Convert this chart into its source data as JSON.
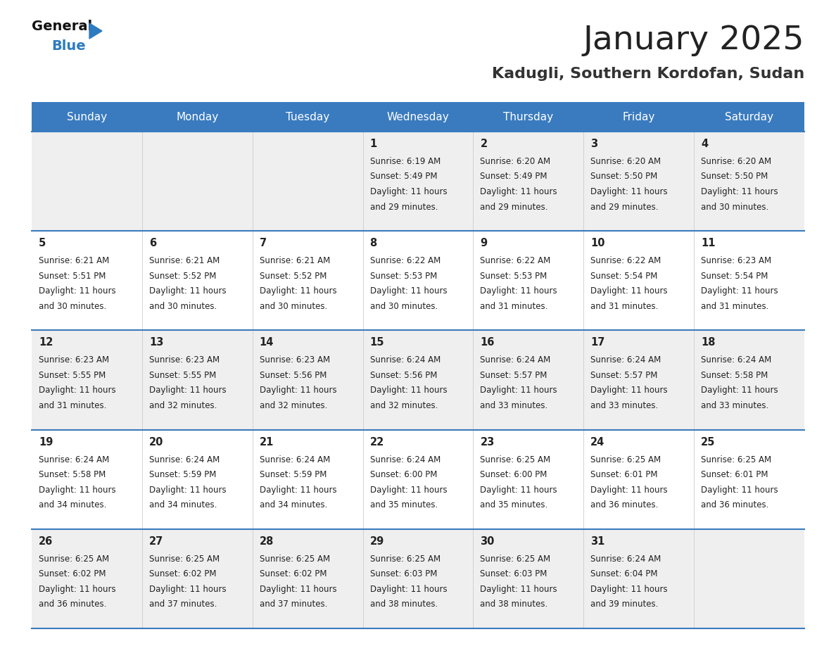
{
  "title": "January 2025",
  "subtitle": "Kadugli, Southern Kordofan, Sudan",
  "days_of_week": [
    "Sunday",
    "Monday",
    "Tuesday",
    "Wednesday",
    "Thursday",
    "Friday",
    "Saturday"
  ],
  "header_bg": "#3a7bbf",
  "header_text": "#ffffff",
  "cell_bg_odd": "#efefef",
  "cell_bg_even": "#ffffff",
  "row_line_color": "#3a7bbf",
  "text_color": "#222222",
  "title_color": "#222222",
  "subtitle_color": "#333333",
  "logo_general_color": "#1a1a1a",
  "logo_blue_color": "#2e7bbf",
  "calendar": [
    [
      null,
      null,
      null,
      {
        "day": 1,
        "sunrise": "6:19 AM",
        "sunset": "5:49 PM",
        "daylight": "11 hours",
        "minutes": "29 minutes."
      },
      {
        "day": 2,
        "sunrise": "6:20 AM",
        "sunset": "5:49 PM",
        "daylight": "11 hours",
        "minutes": "29 minutes."
      },
      {
        "day": 3,
        "sunrise": "6:20 AM",
        "sunset": "5:50 PM",
        "daylight": "11 hours",
        "minutes": "29 minutes."
      },
      {
        "day": 4,
        "sunrise": "6:20 AM",
        "sunset": "5:50 PM",
        "daylight": "11 hours",
        "minutes": "30 minutes."
      }
    ],
    [
      {
        "day": 5,
        "sunrise": "6:21 AM",
        "sunset": "5:51 PM",
        "daylight": "11 hours",
        "minutes": "30 minutes."
      },
      {
        "day": 6,
        "sunrise": "6:21 AM",
        "sunset": "5:52 PM",
        "daylight": "11 hours",
        "minutes": "30 minutes."
      },
      {
        "day": 7,
        "sunrise": "6:21 AM",
        "sunset": "5:52 PM",
        "daylight": "11 hours",
        "minutes": "30 minutes."
      },
      {
        "day": 8,
        "sunrise": "6:22 AM",
        "sunset": "5:53 PM",
        "daylight": "11 hours",
        "minutes": "30 minutes."
      },
      {
        "day": 9,
        "sunrise": "6:22 AM",
        "sunset": "5:53 PM",
        "daylight": "11 hours",
        "minutes": "31 minutes."
      },
      {
        "day": 10,
        "sunrise": "6:22 AM",
        "sunset": "5:54 PM",
        "daylight": "11 hours",
        "minutes": "31 minutes."
      },
      {
        "day": 11,
        "sunrise": "6:23 AM",
        "sunset": "5:54 PM",
        "daylight": "11 hours",
        "minutes": "31 minutes."
      }
    ],
    [
      {
        "day": 12,
        "sunrise": "6:23 AM",
        "sunset": "5:55 PM",
        "daylight": "11 hours",
        "minutes": "31 minutes."
      },
      {
        "day": 13,
        "sunrise": "6:23 AM",
        "sunset": "5:55 PM",
        "daylight": "11 hours",
        "minutes": "32 minutes."
      },
      {
        "day": 14,
        "sunrise": "6:23 AM",
        "sunset": "5:56 PM",
        "daylight": "11 hours",
        "minutes": "32 minutes."
      },
      {
        "day": 15,
        "sunrise": "6:24 AM",
        "sunset": "5:56 PM",
        "daylight": "11 hours",
        "minutes": "32 minutes."
      },
      {
        "day": 16,
        "sunrise": "6:24 AM",
        "sunset": "5:57 PM",
        "daylight": "11 hours",
        "minutes": "33 minutes."
      },
      {
        "day": 17,
        "sunrise": "6:24 AM",
        "sunset": "5:57 PM",
        "daylight": "11 hours",
        "minutes": "33 minutes."
      },
      {
        "day": 18,
        "sunrise": "6:24 AM",
        "sunset": "5:58 PM",
        "daylight": "11 hours",
        "minutes": "33 minutes."
      }
    ],
    [
      {
        "day": 19,
        "sunrise": "6:24 AM",
        "sunset": "5:58 PM",
        "daylight": "11 hours",
        "minutes": "34 minutes."
      },
      {
        "day": 20,
        "sunrise": "6:24 AM",
        "sunset": "5:59 PM",
        "daylight": "11 hours",
        "minutes": "34 minutes."
      },
      {
        "day": 21,
        "sunrise": "6:24 AM",
        "sunset": "5:59 PM",
        "daylight": "11 hours",
        "minutes": "34 minutes."
      },
      {
        "day": 22,
        "sunrise": "6:24 AM",
        "sunset": "6:00 PM",
        "daylight": "11 hours",
        "minutes": "35 minutes."
      },
      {
        "day": 23,
        "sunrise": "6:25 AM",
        "sunset": "6:00 PM",
        "daylight": "11 hours",
        "minutes": "35 minutes."
      },
      {
        "day": 24,
        "sunrise": "6:25 AM",
        "sunset": "6:01 PM",
        "daylight": "11 hours",
        "minutes": "36 minutes."
      },
      {
        "day": 25,
        "sunrise": "6:25 AM",
        "sunset": "6:01 PM",
        "daylight": "11 hours",
        "minutes": "36 minutes."
      }
    ],
    [
      {
        "day": 26,
        "sunrise": "6:25 AM",
        "sunset": "6:02 PM",
        "daylight": "11 hours",
        "minutes": "36 minutes."
      },
      {
        "day": 27,
        "sunrise": "6:25 AM",
        "sunset": "6:02 PM",
        "daylight": "11 hours",
        "minutes": "37 minutes."
      },
      {
        "day": 28,
        "sunrise": "6:25 AM",
        "sunset": "6:02 PM",
        "daylight": "11 hours",
        "minutes": "37 minutes."
      },
      {
        "day": 29,
        "sunrise": "6:25 AM",
        "sunset": "6:03 PM",
        "daylight": "11 hours",
        "minutes": "38 minutes."
      },
      {
        "day": 30,
        "sunrise": "6:25 AM",
        "sunset": "6:03 PM",
        "daylight": "11 hours",
        "minutes": "38 minutes."
      },
      {
        "day": 31,
        "sunrise": "6:24 AM",
        "sunset": "6:04 PM",
        "daylight": "11 hours",
        "minutes": "39 minutes."
      },
      null
    ]
  ],
  "figsize": [
    11.88,
    9.18
  ],
  "dpi": 100
}
